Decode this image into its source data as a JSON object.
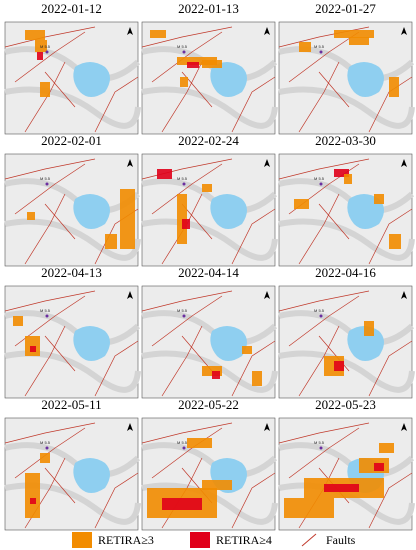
{
  "panels": [
    {
      "date": "2022-01-12"
    },
    {
      "date": "2022-01-13"
    },
    {
      "date": "2022-01-27"
    },
    {
      "date": "2022-02-01"
    },
    {
      "date": "2022-02-24"
    },
    {
      "date": "2022-03-30"
    },
    {
      "date": "2022-04-13"
    },
    {
      "date": "2022-04-14"
    },
    {
      "date": "2022-04-16"
    },
    {
      "date": "2022-05-11"
    },
    {
      "date": "2022-05-22"
    },
    {
      "date": "2022-05-23"
    }
  ],
  "epicenter_label": "M 5.5",
  "legend": [
    {
      "label": "RETIRA≥3",
      "color": "#f28c00"
    },
    {
      "label": "RETIRA≥4",
      "color": "#e0001a"
    },
    {
      "label": "Faults",
      "color": "#c0392b"
    }
  ]
}
